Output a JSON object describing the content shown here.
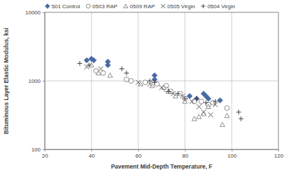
{
  "chart_data": {
    "type": "scatter",
    "xlabel": "Pavement Mid-Depth Temperature, F",
    "ylabel": "Bituminous Layer Elastic Modulus, ksi",
    "xlim": [
      20,
      120
    ],
    "xticks": [
      20,
      40,
      60,
      80,
      100,
      120
    ],
    "ylim": [
      100,
      10000
    ],
    "yticks": [
      100,
      1000,
      10000
    ],
    "log": "y",
    "grid": true,
    "legend": "top",
    "series": [
      {
        "name": "501 Control",
        "color": "#4a6aa5",
        "marker": "diamond",
        "x": [
          38,
          40,
          41,
          47,
          47,
          67,
          67,
          82,
          85,
          88,
          89,
          90,
          95
        ],
        "y": [
          2000,
          2100,
          2000,
          1900,
          1700,
          1200,
          1050,
          600,
          550,
          650,
          600,
          550,
          520
        ]
      },
      {
        "name": "0503 RAP",
        "color": "#7f7f7f",
        "marker": "circle",
        "x": [
          42,
          45,
          55,
          57,
          63,
          68,
          72,
          72,
          74,
          78,
          80,
          84,
          87,
          90,
          92,
          98
        ],
        "y": [
          1400,
          1300,
          1050,
          1000,
          950,
          900,
          850,
          750,
          700,
          650,
          550,
          500,
          500,
          450,
          480,
          400
        ]
      },
      {
        "name": "0509 RAP",
        "color": "#7f7f7f",
        "marker": "triangle",
        "x": [
          40,
          43,
          48,
          61,
          66,
          71,
          73,
          76,
          80,
          84,
          86,
          88,
          90,
          96,
          98
        ],
        "y": [
          1700,
          1300,
          1200,
          900,
          850,
          800,
          700,
          600,
          500,
          280,
          300,
          330,
          420,
          230,
          310
        ]
      },
      {
        "name": "0505 Virgin",
        "color": "#595959",
        "marker": "x",
        "x": [
          38,
          44,
          60,
          65,
          70,
          75,
          79,
          83,
          86,
          88,
          91,
          93
        ],
        "y": [
          1600,
          1500,
          950,
          900,
          800,
          650,
          600,
          500,
          420,
          350,
          320,
          450
        ]
      },
      {
        "name": "0504 Virgin",
        "color": "#404040",
        "marker": "plus",
        "x": [
          35,
          39,
          53,
          55,
          65,
          67,
          73,
          77,
          80,
          85,
          89,
          93,
          103,
          104
        ],
        "y": [
          1800,
          1700,
          1500,
          1300,
          1000,
          950,
          700,
          650,
          550,
          550,
          480,
          500,
          350,
          280
        ]
      }
    ]
  }
}
